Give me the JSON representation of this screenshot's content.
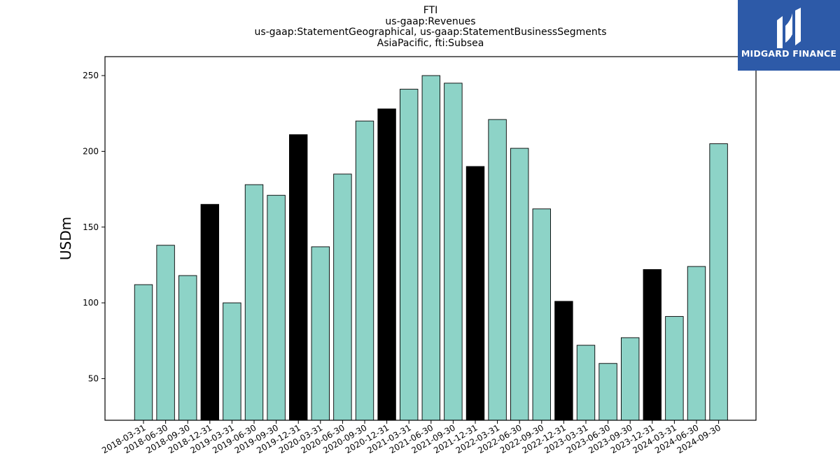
{
  "header": {
    "title_lines": [
      "FTI",
      "us-gaap:Revenues",
      "us-gaap:StatementGeographical, us-gaap:StatementBusinessSegments",
      "AsiaPacific, fti:Subsea"
    ]
  },
  "logo": {
    "text": "MIDGARD FINANCE",
    "icon": "midgard-logo-icon",
    "color": "#2d5aa8"
  },
  "chart_data": {
    "type": "bar",
    "title": "FTI",
    "subtitle": "us-gaap:Revenues / us-gaap:StatementGeographical, us-gaap:StatementBusinessSegments / AsiaPacific, fti:Subsea",
    "xlabel": "",
    "ylabel": "USDm",
    "ylim": [
      22.5,
      262.5
    ],
    "yticks": [
      50,
      100,
      150,
      200,
      250
    ],
    "grid": false,
    "colors": {
      "quarter": "#8dd3c7",
      "year_end": "#000000",
      "edge": "#000000"
    },
    "categories": [
      "2018-03-31",
      "2018-06-30",
      "2018-09-30",
      "2018-12-31",
      "2019-03-31",
      "2019-06-30",
      "2019-09-30",
      "2019-12-31",
      "2020-03-31",
      "2020-06-30",
      "2020-09-30",
      "2020-12-31",
      "2021-03-31",
      "2021-06-30",
      "2021-09-30",
      "2021-12-31",
      "2022-03-31",
      "2022-06-30",
      "2022-09-30",
      "2022-12-31",
      "2023-03-31",
      "2023-06-30",
      "2023-09-30",
      "2023-12-31",
      "2024-03-31",
      "2024-06-30",
      "2024-09-30"
    ],
    "values": [
      112,
      138,
      118,
      165,
      100,
      178,
      171,
      211,
      137,
      185,
      220,
      228,
      241,
      250,
      245,
      190,
      221,
      202,
      162,
      101,
      72,
      60,
      77,
      122,
      91,
      124,
      205
    ],
    "year_end_flags": [
      false,
      false,
      false,
      true,
      false,
      false,
      false,
      true,
      false,
      false,
      false,
      true,
      false,
      false,
      false,
      true,
      false,
      false,
      false,
      true,
      false,
      false,
      false,
      true,
      false,
      false,
      false
    ]
  }
}
